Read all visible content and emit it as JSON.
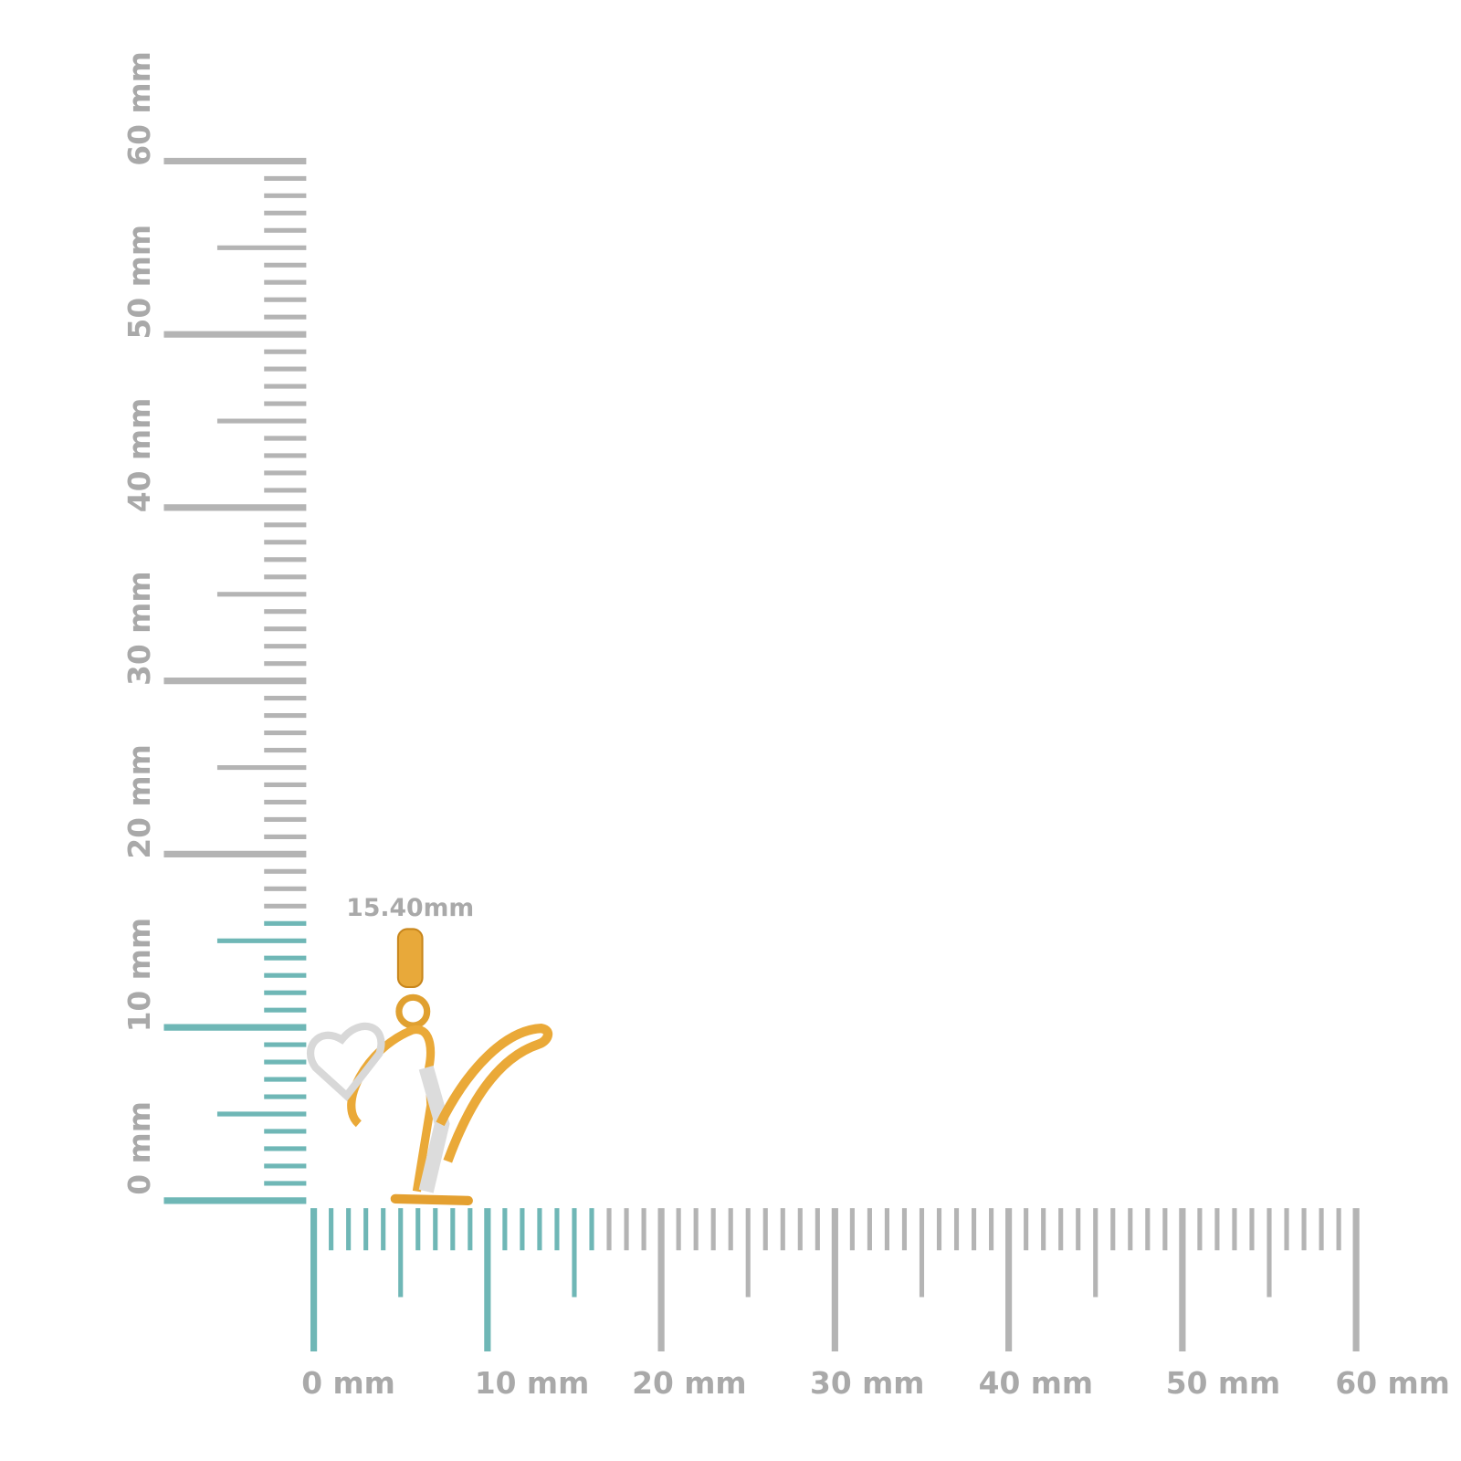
{
  "vertical_ruler": {
    "labels": [
      "0 mm",
      "10 mm",
      "20 mm",
      "30 mm",
      "40 mm",
      "50 mm",
      "60 mm"
    ]
  },
  "horizontal_ruler": {
    "labels": [
      "0 mm",
      "10 mm",
      "20 mm",
      "30 mm",
      "40 mm",
      "50 mm",
      "60 mm"
    ]
  },
  "dimension": "15.40mm"
}
